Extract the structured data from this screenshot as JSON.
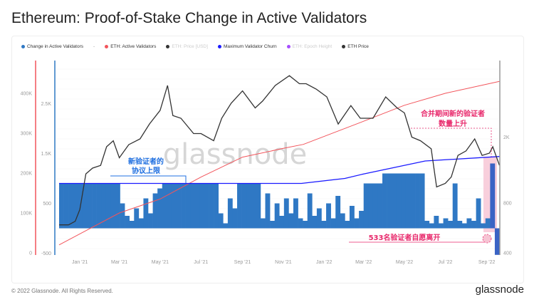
{
  "title": "Ethereum: Proof-of-Stake Change in Active Validators",
  "legend": [
    {
      "label": "Change in Active Validators",
      "color": "#2f78c4",
      "faded": false
    },
    {
      "label": "-",
      "color": "",
      "faded": false
    },
    {
      "label": "ETH: Active Validators",
      "color": "#f2545b",
      "faded": false
    },
    {
      "label": "ETH: Price [USD]",
      "color": "#333333",
      "faded": true
    },
    {
      "label": "Maximum Validator Churn",
      "color": "#1a1aff",
      "faded": false
    },
    {
      "label": "ETH: Epoch Height",
      "color": "#a64dff",
      "faded": true
    },
    {
      "label": "ETH Price",
      "color": "#333333",
      "faded": false
    }
  ],
  "footer": {
    "copyright": "© 2022 Glassnode. All Rights Reserved.",
    "logo": "glassnode"
  },
  "watermark": "glassnode",
  "annotations": {
    "protocol_limit": [
      "新验证者的",
      "协议上限"
    ],
    "merge_rise": [
      "合并期间新的验证者",
      "数量上升"
    ],
    "voluntary_exit": "533名验证者自愿离开"
  },
  "chart_data": {
    "type": "bar+line",
    "title": "Ethereum: Proof-of-Stake Change in Active Validators",
    "x_ticks": [
      "Jan '21",
      "Mar '21",
      "May '21",
      "Jul '21",
      "Sep '21",
      "Nov '21",
      "Jan '22",
      "Mar '22",
      "May '22",
      "Jul '22",
      "Sep '22"
    ],
    "x_tick_dates": [
      "2021-01-01",
      "2021-03-01",
      "2021-05-01",
      "2021-07-01",
      "2021-09-01",
      "2021-11-01",
      "2022-01-01",
      "2022-03-01",
      "2022-05-01",
      "2022-07-01",
      "2022-09-01"
    ],
    "axes": {
      "active_validators": {
        "ticks": [
          "0",
          "100K",
          "200K",
          "300K",
          "400K"
        ],
        "tick_values": [
          0,
          100000,
          200000,
          300000,
          400000
        ],
        "color": "#f2545b"
      },
      "change": {
        "ticks": [
          "-500",
          "500",
          "1.5K",
          "2.5K"
        ],
        "tick_values": [
          -500,
          500,
          1500,
          2500
        ],
        "color": "#2f78c4"
      },
      "price": {
        "ticks": [
          "400",
          "800",
          "2K"
        ],
        "tick_values": [
          400,
          800,
          2000
        ],
        "scale": "log",
        "color": "#888888"
      }
    },
    "grid": true,
    "series": [
      {
        "name": "Change in Active Validators",
        "type": "bar",
        "color": "#2f78c4",
        "points": [
          [
            "2020-12-01",
            900
          ],
          [
            "2020-12-08",
            900
          ],
          [
            "2020-12-15",
            900
          ],
          [
            "2020-12-22",
            900
          ],
          [
            "2020-12-29",
            900
          ],
          [
            "2021-01-05",
            900
          ],
          [
            "2021-01-12",
            900
          ],
          [
            "2021-01-19",
            900
          ],
          [
            "2021-01-26",
            900
          ],
          [
            "2021-02-02",
            900
          ],
          [
            "2021-02-09",
            900
          ],
          [
            "2021-02-16",
            900
          ],
          [
            "2021-02-23",
            900
          ],
          [
            "2021-03-02",
            500
          ],
          [
            "2021-03-09",
            250
          ],
          [
            "2021-03-16",
            150
          ],
          [
            "2021-03-23",
            400
          ],
          [
            "2021-03-30",
            200
          ],
          [
            "2021-04-06",
            600
          ],
          [
            "2021-04-13",
            300
          ],
          [
            "2021-04-20",
            700
          ],
          [
            "2021-04-27",
            800
          ],
          [
            "2021-05-04",
            900
          ],
          [
            "2021-05-11",
            900
          ],
          [
            "2021-05-18",
            900
          ],
          [
            "2021-05-25",
            900
          ],
          [
            "2021-06-01",
            900
          ],
          [
            "2021-06-08",
            900
          ],
          [
            "2021-06-15",
            900
          ],
          [
            "2021-06-22",
            900
          ],
          [
            "2021-06-29",
            900
          ],
          [
            "2021-07-06",
            900
          ],
          [
            "2021-07-13",
            900
          ],
          [
            "2021-07-20",
            900
          ],
          [
            "2021-07-27",
            300
          ],
          [
            "2021-08-03",
            100
          ],
          [
            "2021-08-10",
            600
          ],
          [
            "2021-08-17",
            400
          ],
          [
            "2021-08-24",
            900
          ],
          [
            "2021-08-31",
            900
          ],
          [
            "2021-09-07",
            900
          ],
          [
            "2021-09-14",
            900
          ],
          [
            "2021-09-21",
            900
          ],
          [
            "2021-09-28",
            200
          ],
          [
            "2021-10-05",
            700
          ],
          [
            "2021-10-12",
            150
          ],
          [
            "2021-10-19",
            500
          ],
          [
            "2021-10-26",
            250
          ],
          [
            "2021-11-02",
            600
          ],
          [
            "2021-11-09",
            300
          ],
          [
            "2021-11-16",
            600
          ],
          [
            "2021-11-23",
            200
          ],
          [
            "2021-11-30",
            150
          ],
          [
            "2021-12-07",
            700
          ],
          [
            "2021-12-14",
            250
          ],
          [
            "2021-12-21",
            400
          ],
          [
            "2021-12-28",
            150
          ],
          [
            "2022-01-04",
            500
          ],
          [
            "2022-01-11",
            200
          ],
          [
            "2022-01-18",
            650
          ],
          [
            "2022-01-25",
            300
          ],
          [
            "2022-02-01",
            150
          ],
          [
            "2022-02-08",
            450
          ],
          [
            "2022-02-15",
            200
          ],
          [
            "2022-02-22",
            350
          ],
          [
            "2022-03-01",
            900
          ],
          [
            "2022-03-08",
            900
          ],
          [
            "2022-03-15",
            900
          ],
          [
            "2022-03-22",
            900
          ],
          [
            "2022-03-29",
            1100
          ],
          [
            "2022-04-05",
            1100
          ],
          [
            "2022-04-12",
            1100
          ],
          [
            "2022-04-19",
            1100
          ],
          [
            "2022-04-26",
            1100
          ],
          [
            "2022-05-03",
            1100
          ],
          [
            "2022-05-10",
            1100
          ],
          [
            "2022-05-17",
            1100
          ],
          [
            "2022-05-24",
            1100
          ],
          [
            "2022-05-31",
            150
          ],
          [
            "2022-06-07",
            100
          ],
          [
            "2022-06-14",
            250
          ],
          [
            "2022-06-21",
            100
          ],
          [
            "2022-06-28",
            200
          ],
          [
            "2022-07-05",
            150
          ],
          [
            "2022-07-12",
            900
          ],
          [
            "2022-07-19",
            150
          ],
          [
            "2022-07-26",
            100
          ],
          [
            "2022-08-02",
            200
          ],
          [
            "2022-08-09",
            150
          ],
          [
            "2022-08-16",
            600
          ],
          [
            "2022-08-23",
            100
          ],
          [
            "2022-08-30",
            200
          ],
          [
            "2022-09-06",
            1300
          ],
          [
            "2022-09-13",
            -533
          ],
          [
            "2022-09-20",
            1250
          ]
        ]
      },
      {
        "name": "ETH: Active Validators",
        "type": "line",
        "color": "#f2545b",
        "points": [
          [
            "2020-12-01",
            20000
          ],
          [
            "2021-03-01",
            100000
          ],
          [
            "2021-05-01",
            135000
          ],
          [
            "2021-07-01",
            190000
          ],
          [
            "2021-09-01",
            240000
          ],
          [
            "2021-11-01",
            262000
          ],
          [
            "2021-12-01",
            272000
          ],
          [
            "2022-03-01",
            330000
          ],
          [
            "2022-05-01",
            370000
          ],
          [
            "2022-07-01",
            400000
          ],
          [
            "2022-09-20",
            430000
          ]
        ]
      },
      {
        "name": "Maximum Validator Churn",
        "type": "line",
        "color": "#1a1aff",
        "points": [
          [
            "2020-12-01",
            900
          ],
          [
            "2021-11-28",
            900
          ],
          [
            "2022-02-01",
            1000
          ],
          [
            "2022-03-01",
            1090
          ],
          [
            "2022-06-01",
            1350
          ],
          [
            "2022-09-20",
            1440
          ]
        ]
      },
      {
        "name": "ETH Price",
        "type": "line",
        "color": "#333333",
        "points": [
          [
            "2020-12-01",
            590
          ],
          [
            "2020-12-15",
            590
          ],
          [
            "2020-12-25",
            620
          ],
          [
            "2021-01-01",
            730
          ],
          [
            "2021-01-10",
            1200
          ],
          [
            "2021-01-20",
            1300
          ],
          [
            "2021-02-01",
            1350
          ],
          [
            "2021-02-10",
            1750
          ],
          [
            "2021-02-20",
            1900
          ],
          [
            "2021-03-01",
            1500
          ],
          [
            "2021-03-15",
            1800
          ],
          [
            "2021-04-01",
            1950
          ],
          [
            "2021-04-15",
            2400
          ],
          [
            "2021-05-01",
            2900
          ],
          [
            "2021-05-12",
            4100
          ],
          [
            "2021-05-20",
            2700
          ],
          [
            "2021-06-01",
            2600
          ],
          [
            "2021-06-20",
            2100
          ],
          [
            "2021-07-01",
            2100
          ],
          [
            "2021-07-20",
            1900
          ],
          [
            "2021-08-01",
            2600
          ],
          [
            "2021-08-15",
            3200
          ],
          [
            "2021-09-01",
            3800
          ],
          [
            "2021-09-20",
            3000
          ],
          [
            "2021-10-01",
            3300
          ],
          [
            "2021-10-20",
            4100
          ],
          [
            "2021-11-10",
            4700
          ],
          [
            "2021-11-25",
            4200
          ],
          [
            "2021-12-05",
            4200
          ],
          [
            "2021-12-20",
            3900
          ],
          [
            "2022-01-05",
            3500
          ],
          [
            "2022-01-22",
            2400
          ],
          [
            "2022-02-10",
            3100
          ],
          [
            "2022-02-24",
            2600
          ],
          [
            "2022-03-15",
            2600
          ],
          [
            "2022-04-03",
            3500
          ],
          [
            "2022-04-20",
            3000
          ],
          [
            "2022-05-01",
            2800
          ],
          [
            "2022-05-12",
            2000
          ],
          [
            "2022-05-25",
            1900
          ],
          [
            "2022-06-10",
            1700
          ],
          [
            "2022-06-18",
            1000
          ],
          [
            "2022-07-01",
            1050
          ],
          [
            "2022-07-10",
            1150
          ],
          [
            "2022-07-20",
            1550
          ],
          [
            "2022-08-01",
            1650
          ],
          [
            "2022-08-14",
            1950
          ],
          [
            "2022-08-25",
            1550
          ],
          [
            "2022-09-05",
            1600
          ],
          [
            "2022-09-10",
            1750
          ],
          [
            "2022-09-20",
            1350
          ]
        ]
      }
    ]
  }
}
